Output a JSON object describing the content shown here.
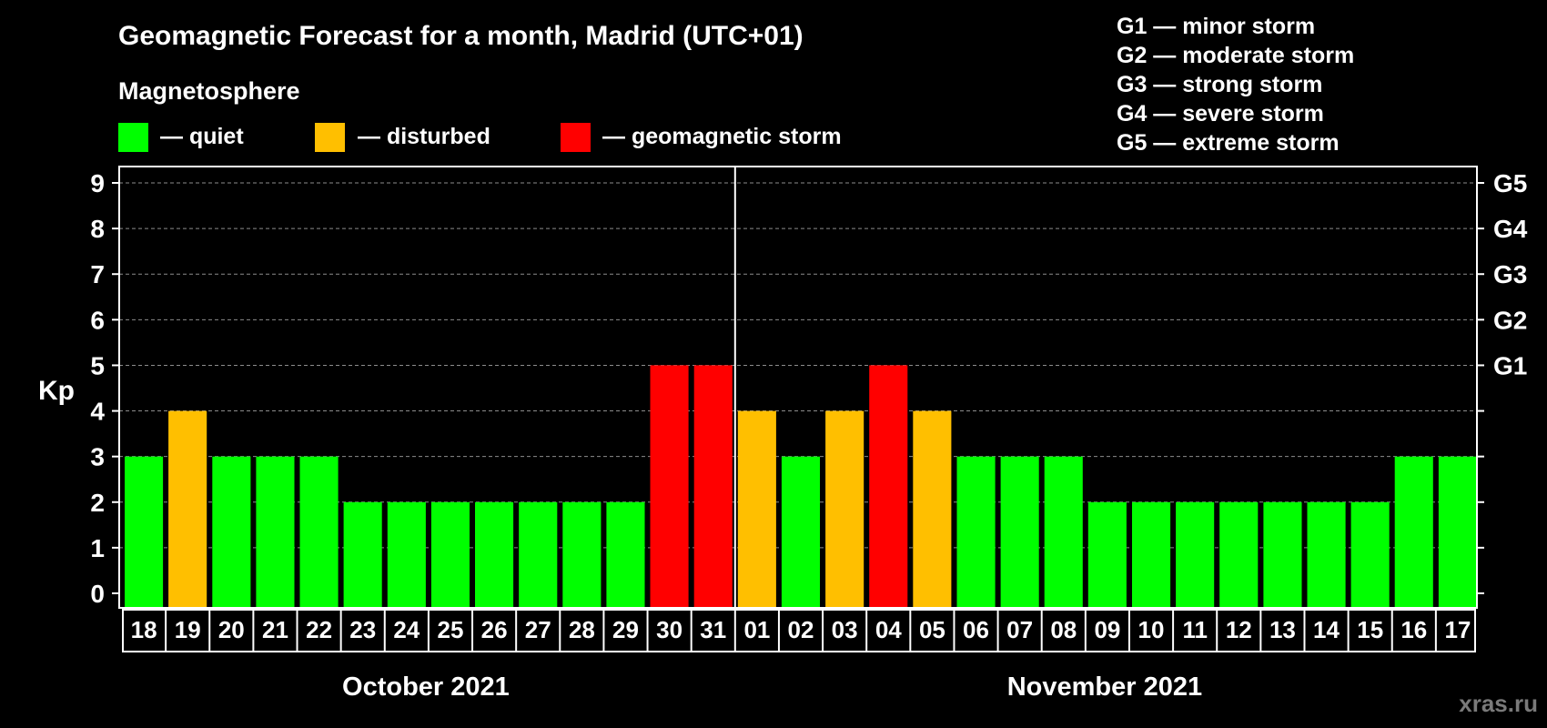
{
  "chart_data": {
    "type": "bar",
    "title": "Geomagnetic Forecast for a month, Madrid (UTC+01)",
    "subtitle": "Magnetosphere",
    "ylabel": "Kp",
    "ylim": [
      0,
      9
    ],
    "yticks": [
      "0",
      "1",
      "2",
      "3",
      "4",
      "5",
      "6",
      "7",
      "8",
      "9"
    ],
    "grid": true,
    "categories": [
      "18",
      "19",
      "20",
      "21",
      "22",
      "23",
      "24",
      "25",
      "26",
      "27",
      "28",
      "29",
      "30",
      "31",
      "01",
      "02",
      "03",
      "04",
      "05",
      "06",
      "07",
      "08",
      "09",
      "10",
      "11",
      "12",
      "13",
      "14",
      "15",
      "16",
      "17"
    ],
    "values": [
      3,
      4,
      3,
      3,
      3,
      2,
      2,
      2,
      2,
      2,
      2,
      2,
      5,
      5,
      4,
      3,
      4,
      5,
      4,
      3,
      3,
      3,
      2,
      2,
      2,
      2,
      2,
      2,
      2,
      3,
      3
    ],
    "months": [
      {
        "label": "October 2021",
        "days": 14
      },
      {
        "label": "November 2021",
        "days": 17
      }
    ],
    "legend": [
      {
        "label": "— quiet",
        "color": "#00ff00"
      },
      {
        "label": "— disturbed",
        "color": "#ffbf00"
      },
      {
        "label": "— geomagnetic storm",
        "color": "#ff0000"
      }
    ],
    "levels": [
      {
        "min": 0,
        "max": 3,
        "color": "#00ff00"
      },
      {
        "min": 4,
        "max": 4,
        "color": "#ffbf00"
      },
      {
        "min": 5,
        "max": 9,
        "color": "#ff0000"
      }
    ],
    "g_levels": [
      {
        "kp": 5,
        "label": "G1"
      },
      {
        "kp": 6,
        "label": "G2"
      },
      {
        "kp": 7,
        "label": "G3"
      },
      {
        "kp": 8,
        "label": "G4"
      },
      {
        "kp": 9,
        "label": "G5"
      }
    ],
    "storm_scale": [
      "G1 — minor storm",
      "G2 — moderate storm",
      "G3 — strong storm",
      "G4 — severe storm",
      "G5 — extreme storm"
    ]
  },
  "watermark": "xras.ru"
}
